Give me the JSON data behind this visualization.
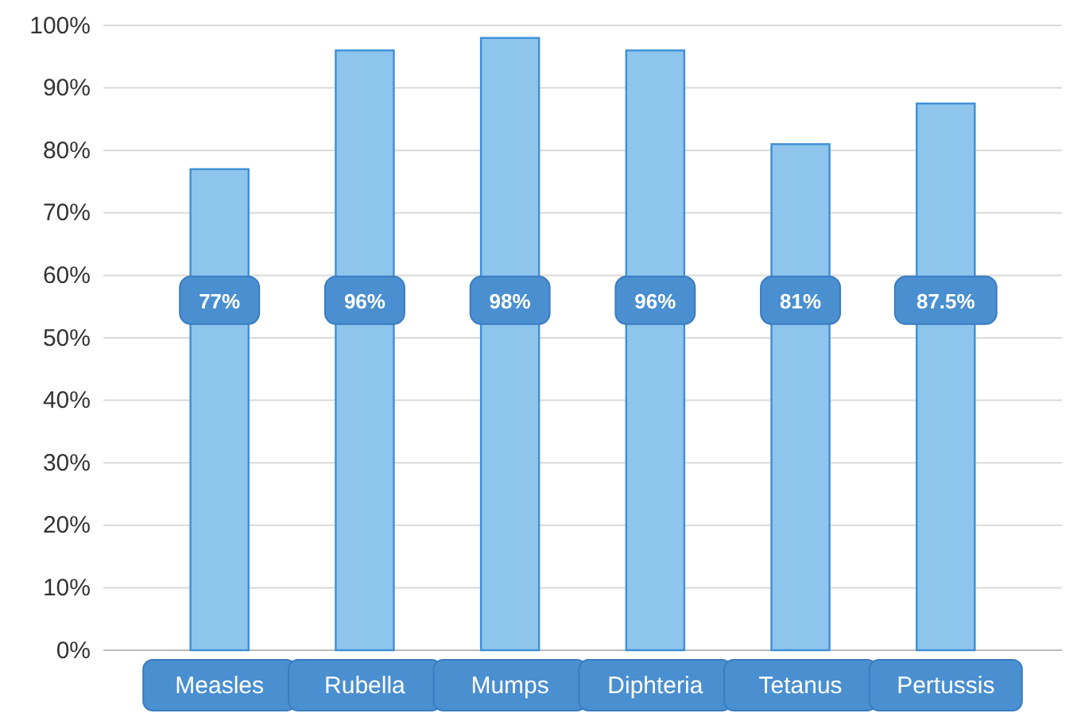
{
  "chart_data": {
    "type": "bar",
    "categories": [
      "Measles",
      "Rubella",
      "Mumps",
      "Diphteria",
      "Tetanus",
      "Pertussis"
    ],
    "values": [
      77,
      96,
      98,
      96,
      81,
      87.5
    ],
    "value_labels": [
      "77%",
      "96%",
      "98%",
      "96%",
      "81%",
      "87.5%"
    ],
    "color": "#8ec5ec",
    "ylim": [
      0,
      100
    ],
    "yticks": [
      {
        "value": 0,
        "label": "0%"
      },
      {
        "value": 10,
        "label": "10%"
      },
      {
        "value": 20,
        "label": "20%"
      },
      {
        "value": 30,
        "label": "30%"
      },
      {
        "value": 40,
        "label": "40%"
      },
      {
        "value": 50,
        "label": "50%"
      },
      {
        "value": 60,
        "label": "60%"
      },
      {
        "value": 70,
        "label": "70%"
      },
      {
        "value": 80,
        "label": "80%"
      },
      {
        "value": 90,
        "label": "90%"
      },
      {
        "value": 100,
        "label": "100%"
      }
    ],
    "grid": "y"
  }
}
